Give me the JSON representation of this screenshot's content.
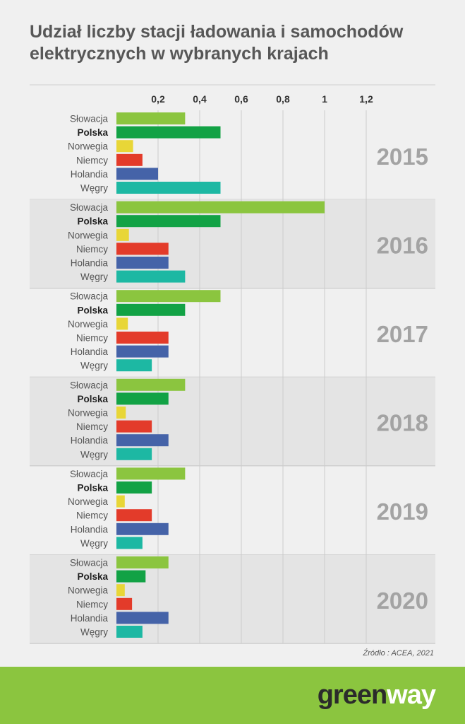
{
  "title": "Udział liczby stacji ładowania i samochodów elektrycznych w wybranych krajach",
  "source": "Źródło : ACEA, 2021",
  "logo": {
    "part1": "green",
    "part2": "way"
  },
  "colors": {
    "Słowacja": "#8bc53f",
    "Polska": "#12a245",
    "Norwegia": "#e8d637",
    "Niemcy": "#e33b2a",
    "Holandia": "#4563a8",
    "Węgry": "#1db8a3",
    "band": "#e4e4e4",
    "grid": "#cccccc",
    "year": "#a3a3a3",
    "footer": "#8bc53f"
  },
  "chart_data": {
    "type": "bar",
    "orientation": "horizontal",
    "xlim": [
      0,
      1.2
    ],
    "x_ticks": [
      "0,2",
      "0,4",
      "0,6",
      "0,8",
      "1",
      "1,2"
    ],
    "x_tick_values": [
      0.2,
      0.4,
      0.6,
      0.8,
      1.0,
      1.2
    ],
    "x_axis_position": "top",
    "grid": true,
    "categories": [
      "Słowacja",
      "Polska",
      "Norwegia",
      "Niemcy",
      "Holandia",
      "Węgry"
    ],
    "bold_category": "Polska",
    "groups": [
      {
        "year": "2015",
        "values": [
          0.33,
          0.5,
          0.08,
          0.125,
          0.2,
          0.5
        ]
      },
      {
        "year": "2016",
        "values": [
          1.0,
          0.5,
          0.06,
          0.25,
          0.25,
          0.33
        ]
      },
      {
        "year": "2017",
        "values": [
          0.5,
          0.33,
          0.055,
          0.25,
          0.25,
          0.17
        ]
      },
      {
        "year": "2018",
        "values": [
          0.33,
          0.25,
          0.045,
          0.17,
          0.25,
          0.17
        ]
      },
      {
        "year": "2019",
        "values": [
          0.33,
          0.17,
          0.04,
          0.17,
          0.25,
          0.125
        ]
      },
      {
        "year": "2020",
        "values": [
          0.25,
          0.14,
          0.04,
          0.075,
          0.25,
          0.125
        ]
      }
    ]
  }
}
